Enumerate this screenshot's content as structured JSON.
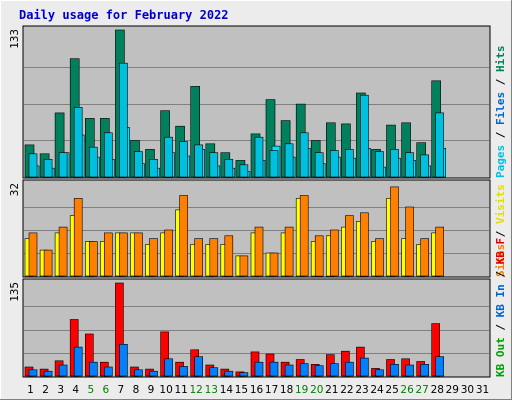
{
  "chart_data": {
    "type": "bar",
    "title": "Daily usage for February 2022",
    "x": [
      "1",
      "2",
      "3",
      "4",
      "5",
      "6",
      "7",
      "8",
      "9",
      "10",
      "11",
      "12",
      "13",
      "14",
      "15",
      "16",
      "17",
      "18",
      "19",
      "20",
      "21",
      "22",
      "23",
      "24",
      "25",
      "26",
      "27",
      "28",
      "29",
      "30",
      "31"
    ],
    "weekend_days": [
      "5",
      "6",
      "12",
      "13",
      "19",
      "20",
      "26",
      "27"
    ],
    "panels": [
      {
        "ymax_label": "133",
        "ylim": [
          0,
          133
        ],
        "legend": [
          {
            "text": "Hits",
            "color": "#00805c"
          },
          {
            "text": "Files",
            "color": "#0066cc"
          },
          {
            "text": "Pages",
            "color": "#00c0e0"
          }
        ],
        "series": [
          {
            "name": "Hits",
            "values": [
              29,
              21,
              58,
              107,
              53,
              53,
              133,
              33,
              25,
              60,
              46,
              82,
              30,
              22,
              15,
              39,
              70,
              51,
              66,
              33,
              49,
              48,
              76,
              25,
              47,
              49,
              31,
              87,
              0,
              0,
              0
            ]
          },
          {
            "name": "Files",
            "values": [
              10,
              8,
              22,
              38,
              18,
              16,
              45,
              12,
              8,
              22,
              19,
              25,
              10,
              8,
              5,
              15,
              28,
              18,
              26,
              12,
              18,
              17,
              26,
              9,
              17,
              15,
              10,
              26,
              0,
              0,
              0
            ]
          },
          {
            "name": "Pages",
            "values": [
              21,
              16,
              22,
              63,
              27,
              40,
              103,
              23,
              16,
              36,
              32,
              29,
              22,
              16,
              11,
              36,
              24,
              30,
              40,
              22,
              24,
              25,
              74,
              23,
              25,
              22,
              20,
              58,
              0,
              0,
              0
            ]
          }
        ]
      },
      {
        "ymax_label": "32",
        "ylim": [
          0,
          32
        ],
        "legend": [
          {
            "text": "Visits",
            "color": "#e0e000"
          },
          {
            "text": "Sites",
            "color": "#f08000"
          }
        ],
        "series": [
          {
            "name": "Visits",
            "values": [
              13,
              9,
              15,
              21,
              12,
              12,
              15,
              15,
              11,
              15,
              23,
              11,
              11,
              11,
              7,
              15,
              8,
              15,
              27,
              12,
              14,
              17,
              19,
              12,
              27,
              13,
              11,
              15,
              0,
              0,
              0
            ]
          },
          {
            "name": "Sites",
            "values": [
              15,
              9,
              17,
              27,
              12,
              15,
              15,
              15,
              13,
              16,
              28,
              13,
              13,
              14,
              7,
              17,
              8,
              17,
              28,
              14,
              16,
              21,
              22,
              13,
              31,
              24,
              13,
              17,
              0,
              0,
              0
            ]
          }
        ]
      },
      {
        "ymax_label": "135",
        "ylim": [
          0,
          135
        ],
        "legend": [
          {
            "text": "KB F",
            "color": "#e00000"
          },
          {
            "text": "KB In",
            "color": "#0066cc"
          },
          {
            "text": "KB Out",
            "color": "#00a000"
          }
        ],
        "series": [
          {
            "name": "KB F",
            "values": [
              13,
              10,
              22,
              82,
              61,
              20,
              135,
              13,
              10,
              64,
              20,
              38,
              16,
              10,
              6,
              35,
              32,
              20,
              24,
              17,
              31,
              36,
              42,
              11,
              24,
              25,
              21,
              76,
              0,
              0,
              0
            ]
          },
          {
            "name": "KB In",
            "values": [
              9,
              7,
              16,
              42,
              20,
              13,
              46,
              9,
              7,
              25,
              14,
              28,
              12,
              7,
              5,
              20,
              20,
              16,
              18,
              15,
              18,
              20,
              26,
              9,
              17,
              16,
              17,
              28,
              0,
              0,
              0
            ]
          },
          {
            "name": "KB Out",
            "values": [
              0,
              0,
              0,
              0,
              0,
              0,
              0,
              0,
              0,
              0,
              0,
              0,
              0,
              0,
              0,
              0,
              0,
              0,
              0,
              0,
              0,
              0,
              0,
              0,
              0,
              0,
              0,
              0,
              0,
              0,
              0
            ]
          }
        ]
      }
    ],
    "grid": true,
    "legend_position": "right"
  },
  "colors": {
    "background": "#ececec",
    "plot_background": "#c0c0c0",
    "gridline": "#808080",
    "hits": "#00805c",
    "files": "#00e0ff",
    "pages": "#00c0e0",
    "visits": "#ffff00",
    "sites": "#ff8000",
    "kbf": "#ff0000",
    "kbin": "#0080ff",
    "weekday_tick": "#000000",
    "weekend_tick": "#008000",
    "title": "#0000cc",
    "legend_separator": "#000000"
  }
}
